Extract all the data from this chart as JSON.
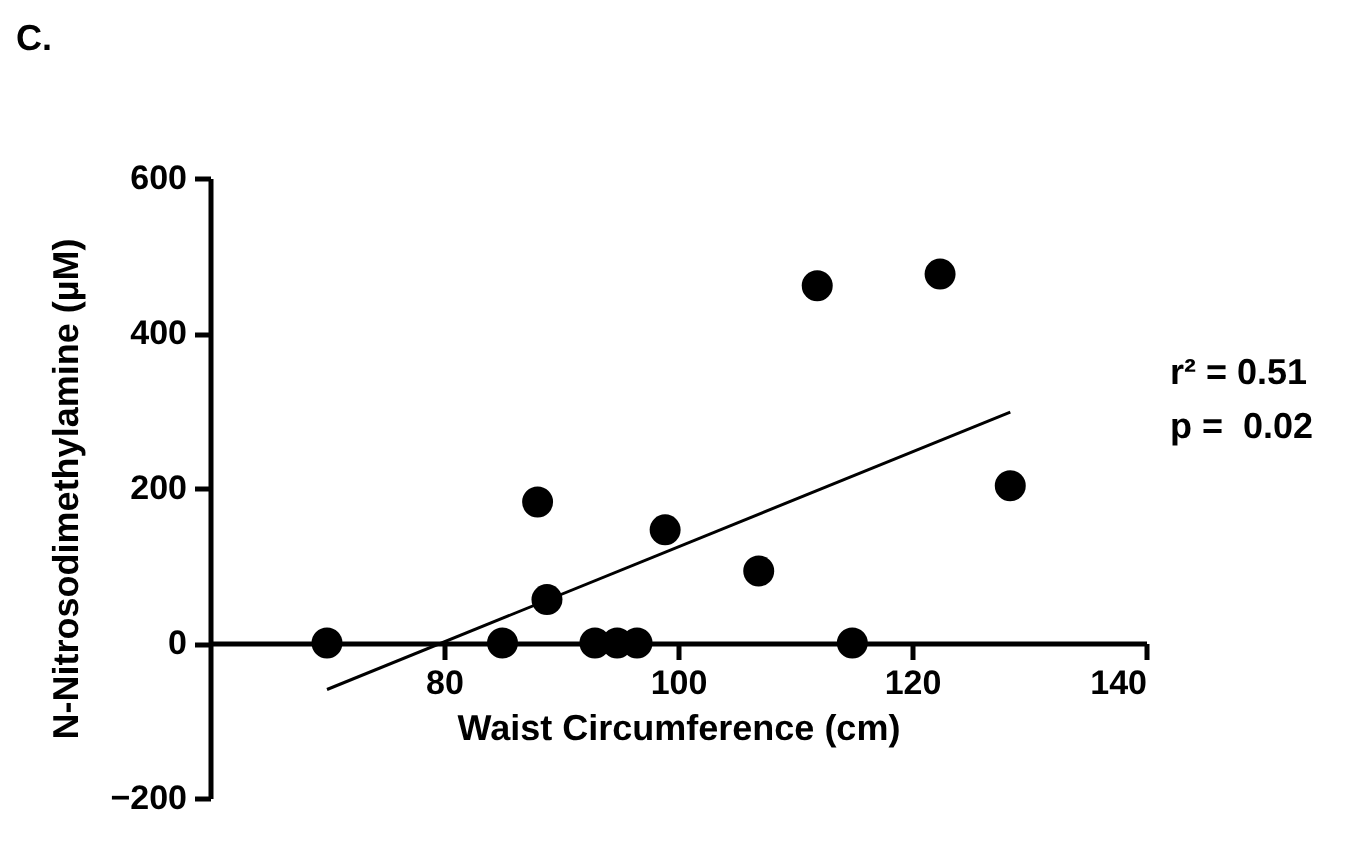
{
  "chart_data": {
    "type": "scatter",
    "title": "C.",
    "xlabel": "Waist Circumference (cm)",
    "ylabel": "N-Nitrosodimethylamine (µM)",
    "xlim": [
      60,
      140
    ],
    "xticks": [
      80,
      100,
      120,
      140
    ],
    "ylim": [
      -200,
      600
    ],
    "yticks": [
      -200,
      0,
      200,
      400,
      600
    ],
    "grid": false,
    "annotations": [
      "r² = 0.51",
      "p =  0.02"
    ],
    "series": [
      {
        "color": "#000000",
        "marker": "circle",
        "x": [
          70,
          85,
          88,
          88.8,
          92.9,
          94.8,
          96.5,
          98.9,
          106.9,
          111.9,
          114.9,
          122.4,
          128.4
        ],
        "values": [
          0,
          0,
          182,
          56,
          0,
          0,
          0,
          146,
          93,
          461,
          0,
          476,
          203
        ]
      },
      {
        "type": "line",
        "color": "#000000",
        "marker": "none",
        "line_style": "solid",
        "x": [
          70,
          128.4
        ],
        "values": [
          -60,
          298
        ]
      }
    ]
  }
}
